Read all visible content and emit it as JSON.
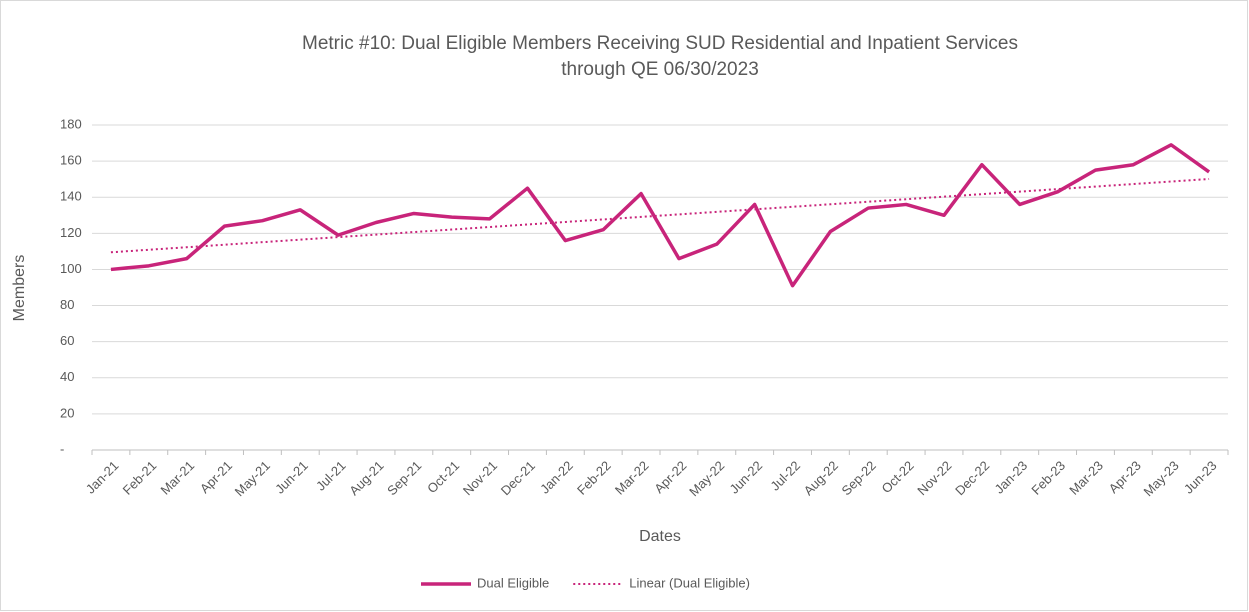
{
  "chart_data": {
    "type": "line",
    "title": [
      "Metric #10: Dual Eligible Members Receiving SUD Residential and Inpatient Services",
      "through QE 06/30/2023"
    ],
    "x_label": "Dates",
    "y_label": "Members",
    "categories": [
      "Jan-21",
      "Feb-21",
      "Mar-21",
      "Apr-21",
      "May-21",
      "Jun-21",
      "Jul-21",
      "Aug-21",
      "Sep-21",
      "Oct-21",
      "Nov-21",
      "Dec-21",
      "Jan-22",
      "Feb-22",
      "Mar-22",
      "Apr-22",
      "May-22",
      "Jun-22",
      "Jul-22",
      "Aug-22",
      "Sep-22",
      "Oct-22",
      "Nov-22",
      "Dec-22",
      "Jan-23",
      "Feb-23",
      "Mar-23",
      "Apr-23",
      "May-23",
      "Jun-23"
    ],
    "series": [
      {
        "name": "Dual Eligible",
        "color": "#c8247a",
        "dash": "solid",
        "values": [
          100,
          102,
          106,
          124,
          127,
          133,
          119,
          126,
          131,
          129,
          128,
          145,
          116,
          122,
          142,
          106,
          114,
          136,
          91,
          121,
          134,
          136,
          130,
          158,
          136,
          143,
          155,
          158,
          169,
          154
        ]
      },
      {
        "name": "Linear (Dual Eligible)",
        "color": "#c8247a",
        "dash": "dotted",
        "values": [
          109.5,
          110.9,
          112.3,
          113.7,
          115.1,
          116.5,
          117.9,
          119.3,
          120.7,
          122.1,
          123.5,
          124.9,
          126.3,
          127.7,
          129.1,
          130.5,
          131.9,
          133.3,
          134.7,
          136.1,
          137.5,
          138.9,
          140.3,
          141.7,
          143.1,
          144.5,
          145.9,
          147.3,
          148.7,
          150.1
        ]
      }
    ],
    "ylim": [
      0,
      180
    ],
    "yticks": [
      {
        "value": 0,
        "label": "-"
      },
      20,
      40,
      60,
      80,
      100,
      120,
      140,
      160,
      180
    ],
    "grid": true,
    "legend": "bottom"
  }
}
